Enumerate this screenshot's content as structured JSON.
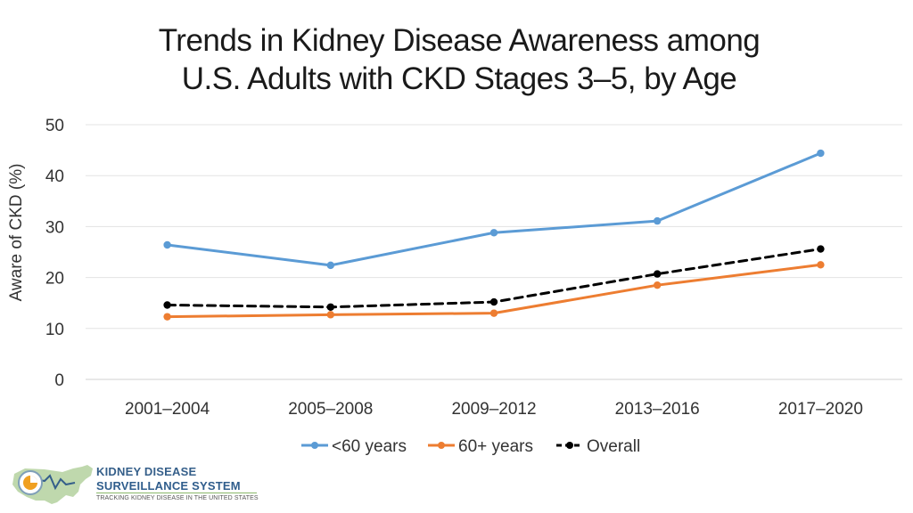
{
  "title_line1": "Trends in Kidney Disease Awareness among",
  "title_line2": "U.S. Adults with CKD Stages 3–5, by Age",
  "logo": {
    "line1": "KIDNEY DISEASE",
    "line2": "SURVEILLANCE SYSTEM",
    "tagline": "TRACKING KIDNEY DISEASE IN THE UNITED STATES"
  },
  "colors": {
    "under60": "#5b9bd5",
    "over60": "#ed7d31",
    "overall": "#000000",
    "grid": "#e3e3e3",
    "logo_blue": "#355f8a",
    "logo_green": "#8ab86a",
    "logo_orange": "#f0a020"
  },
  "chart_data": {
    "type": "line",
    "title": "Trends in Kidney Disease Awareness among U.S. Adults with CKD Stages 3–5, by Age",
    "xlabel": "",
    "ylabel": "Aware of CKD (%)",
    "ylim": [
      0,
      50
    ],
    "yticks": [
      0,
      10,
      20,
      30,
      40,
      50
    ],
    "grid": true,
    "legend_position": "bottom",
    "categories": [
      "2001–2004",
      "2005–2008",
      "2009–2012",
      "2013–2016",
      "2017–2020"
    ],
    "series": [
      {
        "name": "<60 years",
        "key": "under60",
        "style": "solid",
        "values": [
          26.4,
          22.4,
          28.8,
          31.1,
          44.4
        ]
      },
      {
        "name": "60+ years",
        "key": "over60",
        "style": "solid",
        "values": [
          12.3,
          12.7,
          13.0,
          18.5,
          22.5
        ]
      },
      {
        "name": "Overall",
        "key": "overall",
        "style": "dashed",
        "values": [
          14.6,
          14.2,
          15.2,
          20.7,
          25.6
        ]
      }
    ]
  }
}
